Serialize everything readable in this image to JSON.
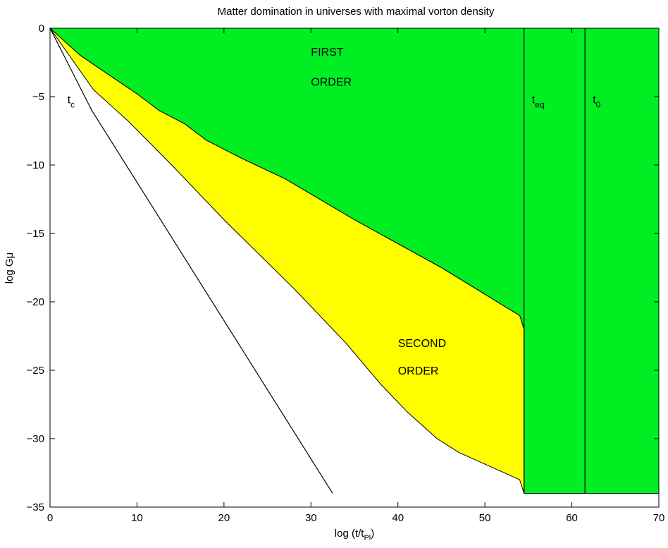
{
  "chart_data": {
    "type": "area",
    "title": "Matter domination in universes with maximal vorton density",
    "xlabel": {
      "main": "log (t/t",
      "sub": "Pl",
      "close": ")"
    },
    "ylabel": "log Gμ",
    "xlim": [
      0,
      70
    ],
    "ylim": [
      -35,
      0
    ],
    "x_ticks": [
      0,
      10,
      20,
      30,
      40,
      50,
      60,
      70
    ],
    "y_ticks": [
      0,
      -5,
      -10,
      -15,
      -20,
      -25,
      -30,
      -35
    ],
    "grid": false,
    "colors": {
      "first_order": "#00ee22",
      "second_order": "#ffff00",
      "line": "#000000"
    },
    "regions": [
      {
        "id": "first-order",
        "color_key": "first_order",
        "labels": [
          {
            "text": "FIRST",
            "x": 30.0,
            "y": -2.0
          },
          {
            "text": "ORDER",
            "x": 30.0,
            "y": -4.2
          }
        ],
        "boundary": [
          [
            0,
            0
          ],
          [
            70,
            0
          ],
          [
            70,
            -34
          ],
          [
            54.5,
            -34
          ],
          [
            54.5,
            -22
          ],
          [
            54,
            -21
          ],
          [
            45,
            -17.5
          ],
          [
            35,
            -14
          ],
          [
            27,
            -11
          ],
          [
            22,
            -9.5
          ],
          [
            18,
            -8.2
          ],
          [
            15.5,
            -7
          ],
          [
            12.5,
            -6
          ],
          [
            10,
            -4.8
          ],
          [
            3.5,
            -2
          ],
          [
            0,
            0
          ]
        ]
      },
      {
        "id": "second-order",
        "color_key": "second_order",
        "labels": [
          {
            "text": "SECOND",
            "x": 40.0,
            "y": -23.3
          },
          {
            "text": "ORDER",
            "x": 40.0,
            "y": -25.3
          }
        ],
        "boundary": [
          [
            0,
            0
          ],
          [
            3.5,
            -2
          ],
          [
            10,
            -4.8
          ],
          [
            12.5,
            -6
          ],
          [
            15.5,
            -7
          ],
          [
            18,
            -8.2
          ],
          [
            22,
            -9.5
          ],
          [
            27,
            -11
          ],
          [
            35,
            -14
          ],
          [
            45,
            -17.5
          ],
          [
            54,
            -21
          ],
          [
            54.5,
            -22
          ],
          [
            54.5,
            -34
          ],
          [
            54,
            -33
          ],
          [
            47,
            -31
          ],
          [
            44.5,
            -30
          ],
          [
            41,
            -28
          ],
          [
            38,
            -26
          ],
          [
            34,
            -23
          ],
          [
            28,
            -19
          ],
          [
            24,
            -16.5
          ],
          [
            20,
            -14
          ],
          [
            14,
            -10
          ],
          [
            9,
            -6.8
          ],
          [
            5,
            -4.5
          ],
          [
            0,
            0
          ]
        ]
      }
    ],
    "lines": [
      {
        "id": "t_c",
        "label": {
          "main": "t",
          "sub": "c",
          "x": 2.0,
          "y": -5.5
        },
        "points": [
          [
            0,
            0
          ],
          [
            4.8,
            -6
          ],
          [
            32.5,
            -34
          ]
        ]
      },
      {
        "id": "t_eq",
        "label": {
          "main": "t",
          "sub": "eq",
          "x": 55.4,
          "y": -5.5
        },
        "points": [
          [
            54.5,
            0
          ],
          [
            54.5,
            -34
          ]
        ]
      },
      {
        "id": "t_0",
        "label": {
          "main": "t",
          "sub": "0",
          "x": 62.4,
          "y": -5.5
        },
        "points": [
          [
            61.5,
            0
          ],
          [
            61.5,
            -34
          ]
        ]
      }
    ]
  }
}
